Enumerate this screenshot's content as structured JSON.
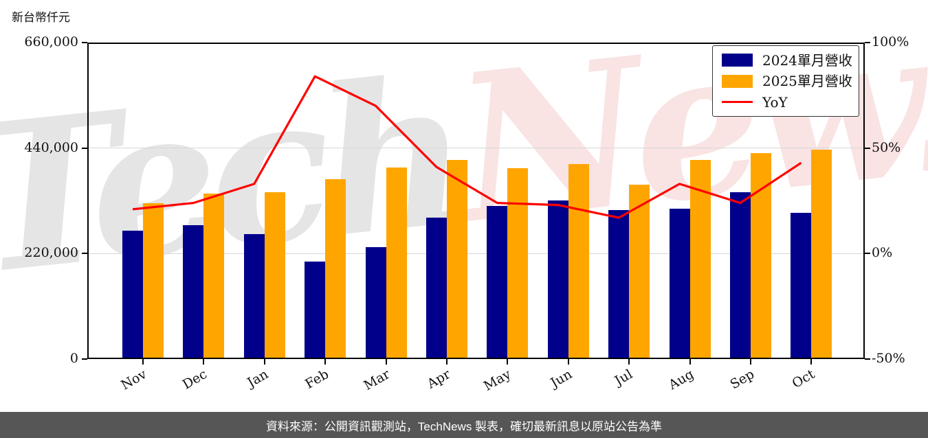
{
  "title": {
    "unit_label": "新台幣仟元"
  },
  "watermark": {
    "part1": "Tech",
    "part2": "News"
  },
  "legend": [
    {
      "label": "2024單月營收",
      "type": "bar",
      "color": "#00008B"
    },
    {
      "label": "2025單月營收",
      "type": "bar",
      "color": "#FFA500"
    },
    {
      "label": "YoY",
      "type": "line",
      "color": "#FF0000"
    }
  ],
  "footer": {
    "text": "資料來源：公開資訊觀測站，TechNews 製表，確切最新訊息以原站公告為準"
  },
  "chart_data": {
    "type": "bar+line",
    "title": "",
    "unit_label": "新台幣仟元",
    "categories": [
      "Nov",
      "Dec",
      "Jan",
      "Feb",
      "Mar",
      "Apr",
      "May",
      "Jun",
      "Jul",
      "Aug",
      "Sep",
      "Oct"
    ],
    "series": [
      {
        "name": "2024單月營收",
        "type": "bar",
        "axis": "left",
        "color": "#00008B",
        "values": [
          268000,
          279000,
          261000,
          203000,
          234000,
          295000,
          320000,
          331000,
          311000,
          313000,
          348000,
          305000
        ]
      },
      {
        "name": "2025單月營收",
        "type": "bar",
        "axis": "left",
        "color": "#FFA500",
        "values": [
          325000,
          345000,
          348000,
          375000,
          400000,
          415000,
          398000,
          407000,
          364000,
          415000,
          430000,
          436000
        ]
      },
      {
        "name": "YoY",
        "type": "line",
        "axis": "right",
        "color": "#FF0000",
        "unit": "%",
        "values": [
          21,
          24,
          33,
          84,
          70,
          41,
          24,
          23,
          17,
          33,
          24,
          43
        ]
      }
    ],
    "left_axis": {
      "min": 0,
      "max": 660000,
      "ticks": [
        {
          "label": "0",
          "value": 0
        },
        {
          "label": "220,000",
          "value": 220000
        },
        {
          "label": "440,000",
          "value": 440000
        },
        {
          "label": "660,000",
          "value": 660000
        }
      ]
    },
    "right_axis": {
      "min": -50,
      "max": 100,
      "ticks": [
        {
          "label": "-50%",
          "value": -50
        },
        {
          "label": "0%",
          "value": 0
        },
        {
          "label": "50%",
          "value": 50
        },
        {
          "label": "100%",
          "value": 100
        }
      ]
    },
    "grid": true,
    "legend_position": "top-right"
  }
}
